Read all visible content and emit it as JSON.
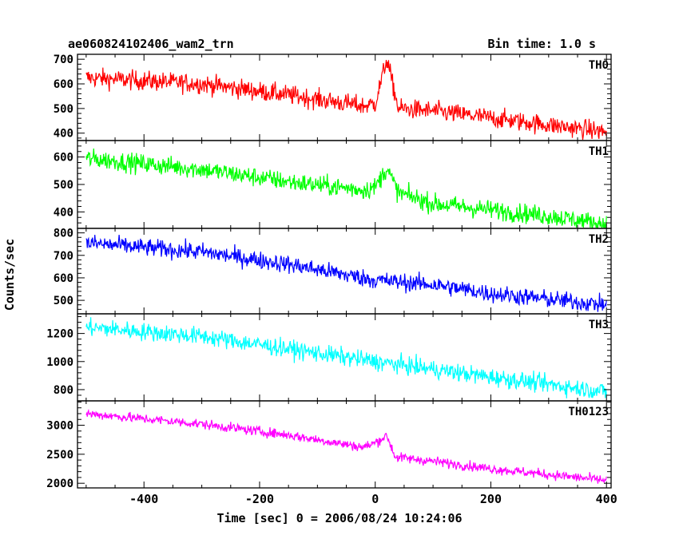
{
  "header": {
    "title": "ae060824102406_wam2_trn",
    "bin_time": "Bin time: 1.0 s"
  },
  "chart_data": {
    "type": "line",
    "title": "ae060824102406_wam2_trn",
    "xlabel": "Time [sec] 0 = 2006/08/24 10:24:06",
    "ylabel": "Counts/sec",
    "xlim": [
      -515,
      408
    ],
    "x_ticks": [
      -400,
      -200,
      0,
      200,
      400
    ],
    "x_range_data": [
      -500,
      400
    ],
    "panels": [
      {
        "name": "TH0",
        "color": "#ff0000",
        "ylim": [
          370,
          720
        ],
        "y_ticks": [
          400,
          500,
          600,
          700
        ],
        "trend": [
          [
            -500,
            625
          ],
          [
            -300,
            600
          ],
          [
            -150,
            555
          ],
          [
            -20,
            510
          ],
          [
            0,
            520
          ],
          [
            20,
            700
          ],
          [
            40,
            500
          ],
          [
            100,
            490
          ],
          [
            400,
            405
          ]
        ],
        "noise": 28
      },
      {
        "name": "TH1",
        "color": "#00ff00",
        "ylim": [
          340,
          660
        ],
        "y_ticks": [
          400,
          500,
          600
        ],
        "trend": [
          [
            -500,
            595
          ],
          [
            -300,
            555
          ],
          [
            -150,
            510
          ],
          [
            -20,
            480
          ],
          [
            0,
            490
          ],
          [
            20,
            560
          ],
          [
            40,
            470
          ],
          [
            100,
            430
          ],
          [
            300,
            385
          ],
          [
            400,
            355
          ]
        ],
        "noise": 25
      },
      {
        "name": "TH2",
        "color": "#0000ff",
        "ylim": [
          440,
          820
        ],
        "y_ticks": [
          500,
          600,
          700,
          800
        ],
        "trend": [
          [
            -500,
            755
          ],
          [
            -300,
            715
          ],
          [
            -150,
            660
          ],
          [
            0,
            590
          ],
          [
            100,
            570
          ],
          [
            200,
            530
          ],
          [
            400,
            480
          ]
        ],
        "noise": 28
      },
      {
        "name": "TH3",
        "color": "#00ffff",
        "ylim": [
          720,
          1340
        ],
        "y_ticks": [
          800,
          1000,
          1200
        ],
        "trend": [
          [
            -500,
            1245
          ],
          [
            -300,
            1180
          ],
          [
            -150,
            1090
          ],
          [
            0,
            1000
          ],
          [
            200,
            890
          ],
          [
            400,
            785
          ]
        ],
        "noise": 45
      },
      {
        "name": "TH0123",
        "color": "#ff00ff",
        "ylim": [
          1920,
          3420
        ],
        "y_ticks": [
          2000,
          2500,
          3000
        ],
        "trend": [
          [
            -500,
            3200
          ],
          [
            -300,
            3020
          ],
          [
            -150,
            2830
          ],
          [
            -20,
            2620
          ],
          [
            0,
            2700
          ],
          [
            20,
            2820
          ],
          [
            35,
            2450
          ],
          [
            100,
            2380
          ],
          [
            200,
            2250
          ],
          [
            400,
            2050
          ]
        ],
        "noise": 60
      }
    ]
  }
}
